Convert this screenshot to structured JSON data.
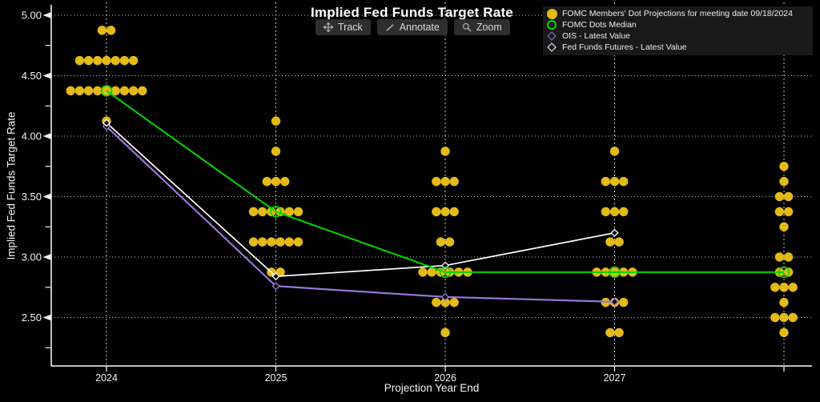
{
  "title": "Implied Fed Funds Target Rate",
  "toolbar": {
    "buttons": [
      {
        "label": "Track",
        "icon": "track-crosshair-icon"
      },
      {
        "label": "Annotate",
        "icon": "annotate-pencil-icon"
      },
      {
        "label": "Zoom",
        "icon": "zoom-magnifier-icon"
      }
    ]
  },
  "legend": {
    "items": [
      {
        "label": "FOMC Members' Dot Projections for meeting date 09/18/2024",
        "marker": "filled-circle",
        "color": "#e3ba17"
      },
      {
        "label": "FOMC Dots Median",
        "marker": "open-circle",
        "color": "#00d600"
      },
      {
        "label": "OIS - Latest Value",
        "marker": "open-diamond",
        "color": "#9678d8"
      },
      {
        "label": "Fed Funds Futures - Latest Value",
        "marker": "open-diamond",
        "color": "#ffffff"
      }
    ]
  },
  "chart_data": {
    "type": "scatter",
    "title": "Implied Fed Funds Target Rate",
    "xlabel": "Projection Year End",
    "ylabel": "Implied Fed Funds Target Rate",
    "x_categories": [
      "2024",
      "2025",
      "2026",
      "2027",
      ""
    ],
    "ylim": [
      2.1,
      5.05
    ],
    "y_major_ticks": [
      5.0,
      4.5,
      4.0,
      3.5,
      3.0,
      2.5
    ],
    "y_minor_ticks": [
      4.75,
      4.25,
      3.75,
      3.25,
      2.75,
      2.25
    ],
    "grid": {
      "horizontal": "dotted at major ticks",
      "vertical": "dashed at each column"
    },
    "legend_position": "top-right",
    "dot_plot": [
      {
        "year": "2024",
        "median": 4.375,
        "dots": [
          {
            "rate": 4.875,
            "count": 2
          },
          {
            "rate": 4.625,
            "count": 7
          },
          {
            "rate": 4.375,
            "count": 9
          },
          {
            "rate": 4.125,
            "count": 1
          }
        ]
      },
      {
        "year": "2025",
        "median": 3.375,
        "dots": [
          {
            "rate": 4.125,
            "count": 1
          },
          {
            "rate": 3.875,
            "count": 1
          },
          {
            "rate": 3.625,
            "count": 3
          },
          {
            "rate": 3.375,
            "count": 6
          },
          {
            "rate": 3.125,
            "count": 6
          },
          {
            "rate": 2.875,
            "count": 2
          }
        ]
      },
      {
        "year": "2026",
        "median": 2.875,
        "dots": [
          {
            "rate": 3.875,
            "count": 1
          },
          {
            "rate": 3.625,
            "count": 3
          },
          {
            "rate": 3.375,
            "count": 3
          },
          {
            "rate": 3.125,
            "count": 2
          },
          {
            "rate": 2.875,
            "count": 6
          },
          {
            "rate": 2.625,
            "count": 3
          },
          {
            "rate": 2.375,
            "count": 1
          }
        ]
      },
      {
        "year": "2027",
        "median": 2.875,
        "dots": [
          {
            "rate": 3.875,
            "count": 1
          },
          {
            "rate": 3.625,
            "count": 3
          },
          {
            "rate": 3.375,
            "count": 3
          },
          {
            "rate": 3.125,
            "count": 2
          },
          {
            "rate": 2.875,
            "count": 5
          },
          {
            "rate": 2.625,
            "count": 3
          },
          {
            "rate": 2.375,
            "count": 2
          }
        ]
      },
      {
        "year": "",
        "median": 2.875,
        "dots": [
          {
            "rate": 3.75,
            "count": 1
          },
          {
            "rate": 3.625,
            "count": 1
          },
          {
            "rate": 3.5,
            "count": 2
          },
          {
            "rate": 3.375,
            "count": 2
          },
          {
            "rate": 3.25,
            "count": 1
          },
          {
            "rate": 3.0,
            "count": 2
          },
          {
            "rate": 2.875,
            "count": 2
          },
          {
            "rate": 2.75,
            "count": 3
          },
          {
            "rate": 2.625,
            "count": 1
          },
          {
            "rate": 2.5,
            "count": 3
          },
          {
            "rate": 2.375,
            "count": 1
          }
        ]
      }
    ],
    "series": [
      {
        "name": "FOMC Dots Median",
        "color": "#00d600",
        "marker": "open-circle",
        "x": [
          "2024",
          "2025",
          "2026",
          "2027",
          ""
        ],
        "values": [
          4.375,
          3.375,
          2.875,
          2.875,
          2.875
        ]
      },
      {
        "name": "Fed Funds Futures - Latest Value",
        "color": "#ffffff",
        "marker": "open-diamond",
        "x": [
          "2024",
          "2025",
          "2026",
          "2027"
        ],
        "values": [
          4.11,
          2.84,
          2.93,
          3.2
        ]
      },
      {
        "name": "OIS - Latest Value",
        "color": "#9678d8",
        "marker": "open-diamond",
        "x": [
          "2024",
          "2025",
          "2026",
          "2027"
        ],
        "values": [
          4.08,
          2.76,
          2.67,
          2.63
        ]
      }
    ],
    "colors": {
      "dots": "#e3ba17",
      "background": "#000000",
      "grid": "#c9c9c9",
      "axis": "#ffffff",
      "text": "#f2f2f2"
    }
  }
}
